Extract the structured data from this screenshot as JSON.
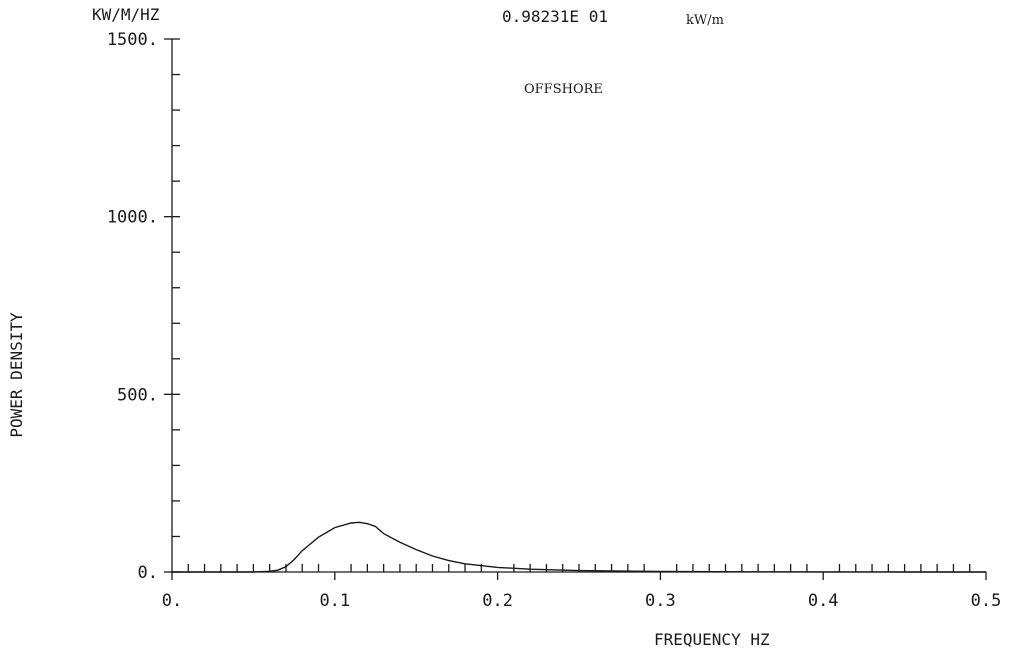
{
  "chart_data": {
    "type": "line",
    "title": "",
    "y_unit_label": "KW/M/HZ",
    "ylabel": "POWER DENSITY",
    "xlabel": "FREQUENCY   HZ",
    "header_value": "0.98231E 01",
    "header_unit": "kW/m",
    "annotation": "OFFSHORE",
    "xlim": [
      0,
      0.5
    ],
    "ylim": [
      0,
      1500
    ],
    "x_tick_labels": [
      "0.",
      "0.1",
      "0.2",
      "0.3",
      "0.4",
      "0.5"
    ],
    "y_tick_labels": [
      "0.",
      "500.",
      "1000.",
      "1500."
    ],
    "grid": false,
    "series": [
      {
        "x": [
          0.0,
          0.05,
          0.06,
          0.065,
          0.07,
          0.075,
          0.08,
          0.09,
          0.1,
          0.11,
          0.115,
          0.12,
          0.125,
          0.13,
          0.14,
          0.15,
          0.16,
          0.17,
          0.18,
          0.2,
          0.22,
          0.25,
          0.3,
          0.35,
          0.4,
          0.45,
          0.5
        ],
        "y": [
          0,
          0,
          2,
          5,
          15,
          35,
          60,
          98,
          125,
          138,
          140,
          136,
          128,
          108,
          84,
          63,
          45,
          32,
          23,
          13,
          8,
          4,
          1.5,
          0.5,
          0.2,
          0.1,
          0
        ]
      }
    ]
  }
}
